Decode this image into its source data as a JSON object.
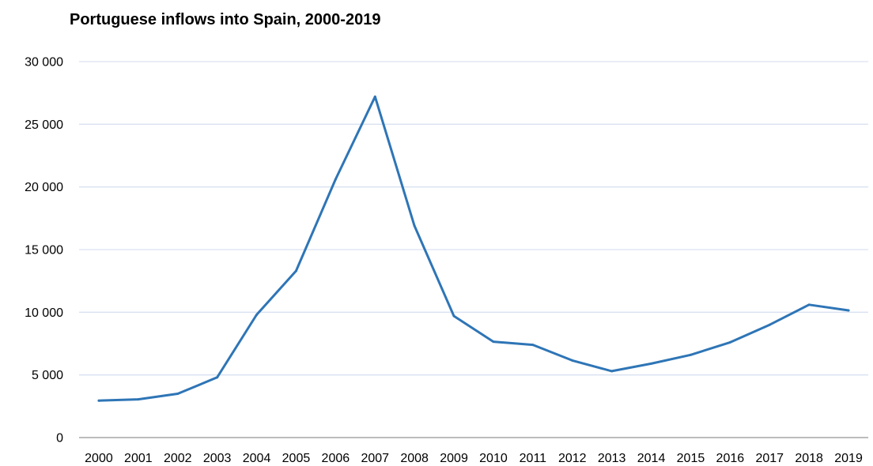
{
  "chart_data": {
    "type": "line",
    "title": "Portuguese inflows into Spain, 2000-2019",
    "xlabel": "",
    "ylabel": "",
    "x": [
      "2000",
      "2001",
      "2002",
      "2003",
      "2004",
      "2005",
      "2006",
      "2007",
      "2008",
      "2009",
      "2010",
      "2011",
      "2012",
      "2013",
      "2014",
      "2015",
      "2016",
      "2017",
      "2018",
      "2019"
    ],
    "series": [
      {
        "values": [
          2950,
          3050,
          3500,
          4800,
          9800,
          13300,
          20600,
          27200,
          16900,
          9700,
          7650,
          7400,
          6150,
          5300,
          5900,
          6600,
          7600,
          9000,
          10600,
          10150
        ]
      }
    ],
    "ylim": [
      0,
      30000
    ],
    "yticks": [
      0,
      5000,
      10000,
      15000,
      20000,
      25000,
      30000
    ],
    "ytick_labels": [
      "0",
      "5 000",
      "10 000",
      "15 000",
      "20 000",
      "25 000",
      "30 000"
    ],
    "grid": true,
    "legend": "none",
    "colors": {
      "line": "#2E75B6",
      "grid": "#D9E2F0",
      "axis": "#A6A6A6"
    }
  }
}
